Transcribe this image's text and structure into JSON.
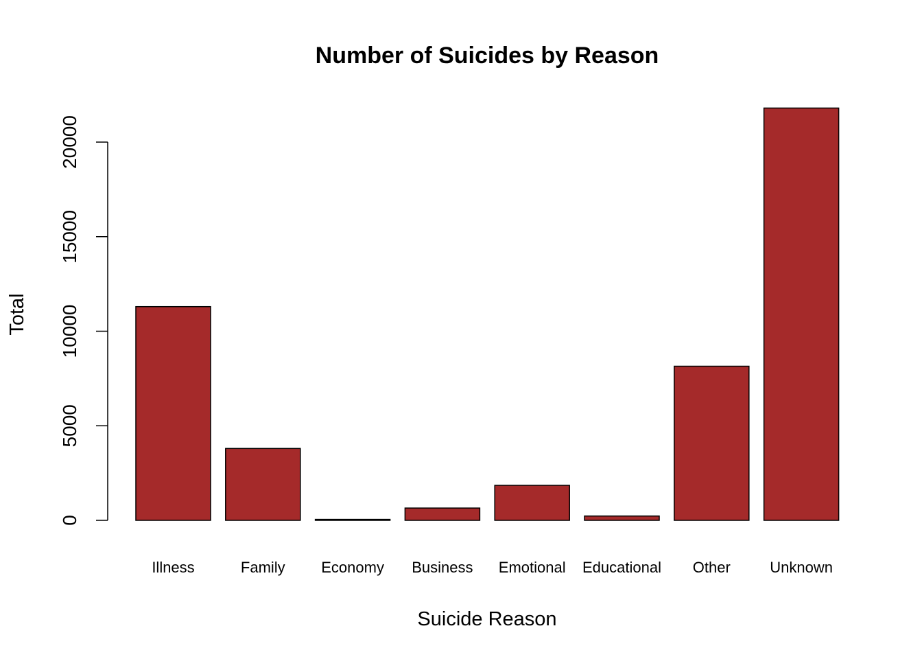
{
  "chart_data": {
    "type": "bar",
    "title": "Number of Suicides by Reason",
    "xlabel": "Suicide Reason",
    "ylabel": "Total",
    "categories": [
      "Illness",
      "Family",
      "Economy",
      "Business",
      "Emotional",
      "Educational",
      "Other",
      "Unknown"
    ],
    "values": [
      11300,
      3800,
      50,
      650,
      1850,
      230,
      8150,
      21800
    ],
    "yticks": [
      0,
      5000,
      10000,
      15000,
      20000
    ],
    "ytick_labels": [
      "0",
      "5000",
      "10000",
      "15000",
      "20000"
    ],
    "ylim": [
      0,
      21800
    ],
    "grid": false,
    "legend": "none",
    "colors": {
      "bar_fill": "#A52A2A",
      "bar_border": "#000000",
      "background": "#FFFFFF"
    }
  }
}
